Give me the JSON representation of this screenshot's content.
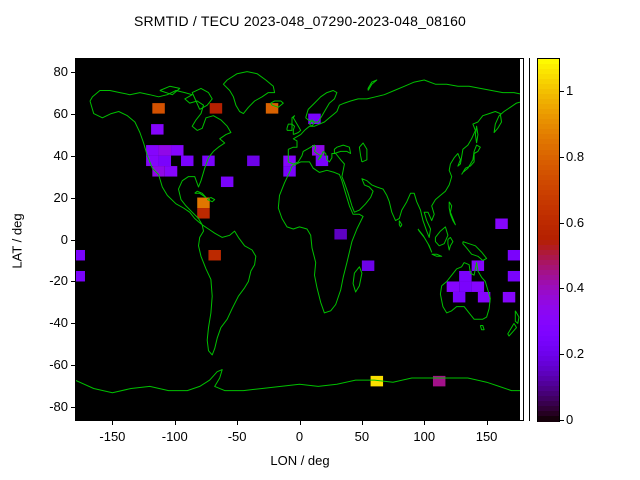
{
  "chart_data": {
    "type": "heatmap",
    "title": "SRMTID / TECU 2023-048_07290-2023-048_08160",
    "xlabel": "LON / deg",
    "ylabel": "LAT / deg",
    "xlim": [
      -180,
      180
    ],
    "ylim": [
      -90,
      90
    ],
    "x_ticks": [
      -150,
      -100,
      -50,
      0,
      50,
      100,
      150
    ],
    "y_ticks": [
      80,
      60,
      40,
      20,
      0,
      -20,
      -40,
      -60,
      -80
    ],
    "grid": false,
    "legend_position": "right-colorbar",
    "colorbar": {
      "ticks": [
        0,
        0.2,
        0.4,
        0.6,
        0.8,
        1
      ],
      "min": 0,
      "max": 1.1
    },
    "palette": {
      "name": "pm3d-black-blue-red-yellow",
      "stops": [
        "#000000",
        "#7a03fc",
        "#b42000",
        "#da6300",
        "#ffff00"
      ]
    },
    "map_background": "#000000",
    "coastline_color": "#00c000",
    "cell_size": {
      "lon_deg": 10,
      "lat_deg": 5
    },
    "cells": [
      {
        "lon": -113,
        "lat": 62.5,
        "value": 0.75
      },
      {
        "lon": -67,
        "lat": 62.5,
        "value": 0.55
      },
      {
        "lon": -22,
        "lat": 62.5,
        "value": 0.8
      },
      {
        "lon": 12,
        "lat": 57.5,
        "value": 0.25
      },
      {
        "lon": -114,
        "lat": 52.5,
        "value": 0.3
      },
      {
        "lon": -118,
        "lat": 42.5,
        "value": 0.3
      },
      {
        "lon": -108,
        "lat": 42.5,
        "value": 0.35
      },
      {
        "lon": -98,
        "lat": 42.5,
        "value": 0.3
      },
      {
        "lon": -118,
        "lat": 37.5,
        "value": 0.3
      },
      {
        "lon": -108,
        "lat": 37.5,
        "value": 0.25
      },
      {
        "lon": -90,
        "lat": 37.5,
        "value": 0.25
      },
      {
        "lon": -73,
        "lat": 37.5,
        "value": 0.25
      },
      {
        "lon": -113,
        "lat": 32.5,
        "value": 0.35
      },
      {
        "lon": -103,
        "lat": 32.5,
        "value": 0.3
      },
      {
        "lon": -37,
        "lat": 37.5,
        "value": 0.2
      },
      {
        "lon": -8,
        "lat": 37.5,
        "value": 0.3
      },
      {
        "lon": -8,
        "lat": 32.5,
        "value": 0.25
      },
      {
        "lon": 15,
        "lat": 42.5,
        "value": 0.35
      },
      {
        "lon": 18,
        "lat": 37.5,
        "value": 0.25
      },
      {
        "lon": -58,
        "lat": 27.5,
        "value": 0.25
      },
      {
        "lon": -77,
        "lat": 17.5,
        "value": 0.85
      },
      {
        "lon": -77,
        "lat": 12.5,
        "value": 0.6
      },
      {
        "lon": -68,
        "lat": -7.5,
        "value": 0.6
      },
      {
        "lon": -177,
        "lat": -7.5,
        "value": 0.25
      },
      {
        "lon": -177,
        "lat": -17.5,
        "value": 0.25
      },
      {
        "lon": 33,
        "lat": 2.5,
        "value": 0.15
      },
      {
        "lon": 55,
        "lat": -12.5,
        "value": 0.2
      },
      {
        "lon": 162,
        "lat": 7.5,
        "value": 0.3
      },
      {
        "lon": 143,
        "lat": -12.5,
        "value": 0.3
      },
      {
        "lon": 133,
        "lat": -17.5,
        "value": 0.25
      },
      {
        "lon": 123,
        "lat": -22.5,
        "value": 0.3
      },
      {
        "lon": 133,
        "lat": -22.5,
        "value": 0.25
      },
      {
        "lon": 143,
        "lat": -22.5,
        "value": 0.3
      },
      {
        "lon": 128,
        "lat": -27.5,
        "value": 0.25
      },
      {
        "lon": 148,
        "lat": -27.5,
        "value": 0.3
      },
      {
        "lon": 172,
        "lat": -7.5,
        "value": 0.25
      },
      {
        "lon": 172,
        "lat": -17.5,
        "value": 0.25
      },
      {
        "lon": 168,
        "lat": -27.5,
        "value": 0.3
      },
      {
        "lon": 62,
        "lat": -67.5,
        "value": 1.05
      },
      {
        "lon": 112,
        "lat": -67.5,
        "value": 0.45
      }
    ]
  }
}
